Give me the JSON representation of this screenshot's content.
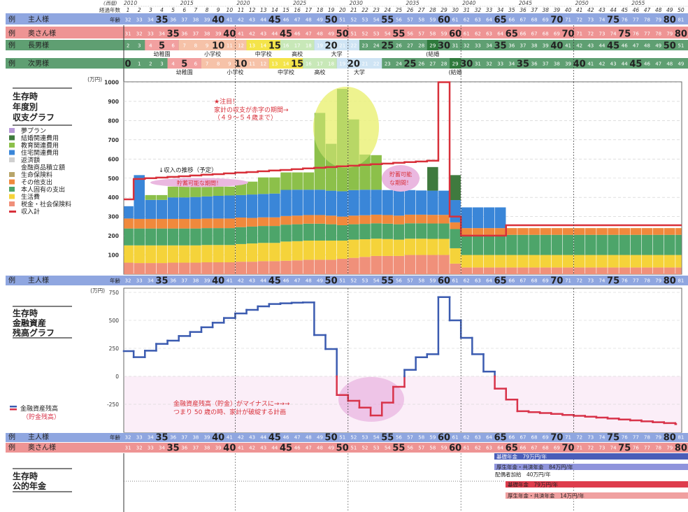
{
  "header": {
    "era_label": "(西暦)",
    "years": [
      "2010",
      "2015",
      "2020",
      "2025",
      "2030",
      "2035",
      "2040",
      "2045",
      "2050",
      "2055"
    ],
    "elapsed_label": "経過年数",
    "elapsed": [
      1,
      2,
      3,
      4,
      5,
      6,
      7,
      8,
      9,
      10,
      11,
      12,
      13,
      14,
      15,
      16,
      17,
      18,
      19,
      20,
      21,
      22,
      23,
      24,
      25,
      26,
      27,
      28,
      29,
      30,
      31,
      32,
      33,
      34,
      35,
      36,
      37,
      38,
      39,
      40,
      41,
      42,
      43,
      44,
      45,
      46,
      47,
      48,
      49,
      50
    ]
  },
  "rows": {
    "example": "例",
    "age_label": "年齢",
    "husband": {
      "name": "主人様",
      "start_age": 32,
      "color": "#8fa6e0"
    },
    "wife": {
      "name": "奥さん様",
      "start_age": 31,
      "color": "#ee9494"
    },
    "son1": {
      "name": "長男様",
      "start_age": 2,
      "color": "#5f9f72",
      "stages": [
        {
          "label": "幼稚園",
          "from": 4,
          "to": 6,
          "color": "#f2a0a0"
        },
        {
          "label": "小学校",
          "from": 7,
          "to": 12,
          "color": "#f6c2a8"
        },
        {
          "label": "中学校",
          "from": 13,
          "to": 15,
          "color": "#f4e44a"
        },
        {
          "label": "高校",
          "from": 16,
          "to": 18,
          "color": "#c8e8b8"
        },
        {
          "label": "大学",
          "from": 19,
          "to": 22,
          "color": "#cfe4f4"
        },
        {
          "label": "(結婚",
          "from": 29,
          "to": 29,
          "color": "#2f7a3c"
        }
      ]
    },
    "son2": {
      "name": "次男様",
      "start_age": 0,
      "color": "#5f9f72",
      "stages": [
        {
          "label": "幼稚園",
          "from": 4,
          "to": 6,
          "color": "#f2a0a0"
        },
        {
          "label": "小学校",
          "from": 7,
          "to": 12,
          "color": "#f6c2a8"
        },
        {
          "label": "中学校",
          "from": 13,
          "to": 15,
          "color": "#f4e44a"
        },
        {
          "label": "高校",
          "from": 16,
          "to": 18,
          "color": "#c8e8b8"
        },
        {
          "label": "大学",
          "from": 19,
          "to": 22,
          "color": "#cfe4f4"
        },
        {
          "label": "(結婚",
          "from": 29,
          "to": 29,
          "color": "#2f7a3c"
        }
      ]
    }
  },
  "chart_data": [
    {
      "type": "bar",
      "title": "生存時 年度別 収支グラフ",
      "ylabel": "(万円)",
      "ylim": [
        0,
        1000
      ],
      "yticks": [
        100,
        200,
        300,
        400,
        500,
        600,
        700,
        800,
        900,
        1000
      ],
      "grid": true,
      "x": "経過年数 1–50",
      "legend_items": [
        {
          "name": "夢プラン",
          "color": "#b79ad8"
        },
        {
          "name": "結婚関連費用",
          "color": "#3f7a3e"
        },
        {
          "name": "教育関連費用",
          "color": "#8cc04a"
        },
        {
          "name": "住宅関連費用",
          "color": "#3a86d8"
        },
        {
          "name": "返済額",
          "color": "#d0d0d0"
        },
        {
          "name": "金融商品積立額",
          "color": "#ffffff"
        },
        {
          "name": "生命保険料",
          "color": "#b8a56a"
        },
        {
          "name": "その他支出",
          "color": "#f0893c"
        },
        {
          "name": "本人固有の支出",
          "color": "#4da56a"
        },
        {
          "name": "生活費",
          "color": "#f5d33a"
        },
        {
          "name": "税金・社会保険料",
          "color": "#f0907a"
        },
        {
          "name": "収入計",
          "color": "#d8303a"
        }
      ],
      "series": [
        {
          "name": "税金・社会保険料",
          "color": "#f0907a",
          "values": [
            60,
            58,
            58,
            58,
            60,
            60,
            60,
            62,
            62,
            62,
            65,
            65,
            68,
            68,
            70,
            72,
            75,
            75,
            75,
            80,
            85,
            90,
            95,
            95,
            95,
            100,
            100,
            100,
            100,
            55,
            35,
            35,
            35,
            35,
            35,
            35,
            35,
            35,
            35,
            35,
            35,
            35,
            35,
            35,
            35,
            35,
            35,
            35,
            35,
            35
          ]
        },
        {
          "name": "生活費",
          "color": "#f5d33a",
          "values": [
            90,
            92,
            92,
            92,
            90,
            90,
            90,
            90,
            90,
            90,
            92,
            95,
            95,
            95,
            100,
            100,
            100,
            100,
            100,
            95,
            95,
            92,
            90,
            88,
            85,
            85,
            85,
            84,
            84,
            80,
            65,
            65,
            65,
            65,
            65,
            65,
            65,
            65,
            65,
            65,
            65,
            65,
            65,
            65,
            65,
            65,
            65,
            65,
            65,
            65
          ]
        },
        {
          "name": "本人固有の支出",
          "color": "#4da56a",
          "values": [
            88,
            88,
            88,
            88,
            88,
            88,
            88,
            88,
            88,
            88,
            88,
            88,
            88,
            88,
            88,
            88,
            88,
            88,
            85,
            80,
            80,
            80,
            80,
            80,
            80,
            80,
            80,
            80,
            80,
            100,
            105,
            105,
            105,
            105,
            105,
            105,
            105,
            105,
            105,
            105,
            105,
            105,
            105,
            105,
            105,
            105,
            105,
            105,
            105,
            105
          ]
        },
        {
          "name": "その他支出",
          "color": "#f0893c",
          "values": [
            52,
            50,
            50,
            50,
            50,
            50,
            50,
            50,
            50,
            50,
            50,
            45,
            45,
            45,
            45,
            45,
            45,
            45,
            45,
            45,
            45,
            45,
            45,
            45,
            45,
            45,
            45,
            45,
            45,
            35,
            35,
            35,
            35,
            35,
            35,
            35,
            35,
            35,
            35,
            35,
            35,
            35,
            35,
            35,
            35,
            35,
            35,
            35,
            35,
            35
          ]
        },
        {
          "name": "住宅関連費用",
          "color": "#3a86d8",
          "values": [
            64,
            228,
            99,
            99,
            112,
            112,
            114,
            115,
            118,
            120,
            117,
            122,
            122,
            124,
            136,
            135,
            132,
            132,
            130,
            132,
            133,
            133,
            130,
            130,
            135,
            128,
            126,
            126,
            126,
            116,
            108,
            108,
            108,
            108,
            0,
            0,
            0,
            0,
            0,
            0,
            0,
            0,
            0,
            0,
            0,
            0,
            0,
            0,
            0,
            0
          ]
        },
        {
          "name": "教育関連費用",
          "color": "#8cc04a",
          "values": [
            0,
            0,
            25,
            25,
            56,
            56,
            54,
            51,
            48,
            46,
            70,
            67,
            86,
            84,
            91,
            90,
            90,
            400,
            244,
            533,
            368,
            183,
            180,
            0,
            0,
            0,
            0,
            0,
            0,
            0,
            0,
            0,
            0,
            0,
            0,
            0,
            0,
            0,
            0,
            0,
            0,
            0,
            0,
            0,
            0,
            0,
            0,
            0,
            0,
            0
          ]
        },
        {
          "name": "結婚関連費用",
          "color": "#3f7a3e",
          "values": [
            0,
            0,
            0,
            0,
            0,
            0,
            0,
            0,
            0,
            0,
            0,
            0,
            0,
            0,
            0,
            0,
            0,
            0,
            0,
            0,
            0,
            0,
            0,
            0,
            0,
            0,
            0,
            123,
            0,
            130,
            0,
            0,
            0,
            0,
            0,
            0,
            0,
            0,
            0,
            0,
            0,
            0,
            0,
            0,
            0,
            0,
            0,
            0,
            0,
            0
          ]
        }
      ],
      "line": {
        "name": "収入計",
        "color": "#d8303a",
        "values": [
          390,
          496,
          500,
          503,
          507,
          510,
          514,
          518,
          521,
          525,
          529,
          532,
          536,
          540,
          543,
          547,
          551,
          554,
          558,
          562,
          565,
          569,
          573,
          576,
          580,
          584,
          587,
          591,
          1000,
          300,
          201,
          201,
          201,
          201,
          255,
          255,
          255,
          255,
          255,
          255,
          255,
          255,
          255,
          255,
          255,
          255,
          255,
          255,
          255,
          255
        ]
      },
      "annotations": {
        "star": "★注目！",
        "deficit": "家計の収支が赤字の期間→",
        "deficit_range": "（４９～５４歳まで）",
        "income_trend": "↓収入の推移（予定）",
        "saving1": "貯蓄可能な期間！",
        "saving2_a": "貯蓄可能",
        "saving2_b": "な期間！"
      }
    },
    {
      "type": "line",
      "title": "生存時 金融資産残高グラフ",
      "ylabel": "(万円)",
      "ylim": [
        -500,
        750
      ],
      "yticks": [
        750,
        500,
        250,
        0,
        -250
      ],
      "grid": true,
      "legend_items": [
        {
          "name": "金融資産残高",
          "sub": "（貯金残高）",
          "colors": [
            "#3b5bb0",
            "#d8334a"
          ]
        }
      ],
      "series": [
        {
          "name": "金融資産残高",
          "values": [
            225,
            171,
            229,
            290,
            319,
            360,
            396,
            438,
            479,
            521,
            562,
            594,
            625,
            646,
            652,
            658,
            660,
            369,
            244,
            -167,
            -219,
            -280,
            -350,
            -235,
            -94,
            58,
            170,
            198,
            708,
            500,
            344,
            198,
            42,
            -110,
            -208,
            -312,
            -320,
            -328,
            -336,
            -345,
            -353,
            -361,
            -369,
            -377,
            -386,
            -394,
            -402,
            -410,
            -418,
            -427
          ]
        }
      ],
      "annotations": {
        "line1": "金融資産残高（貯金）がマイナスに→→→",
        "line2": "つまり 50 歳の時、家計が破綻する計画"
      }
    }
  ],
  "pension": {
    "title_a": "生存時",
    "title_b": "公的年金",
    "items": [
      {
        "label": "基礎年金　79万円/年",
        "color": "#4a5db8",
        "from_age": 65,
        "owner": "主人様"
      },
      {
        "label": "厚生年金・共済年金　84万円/年",
        "color": "#8f94dc",
        "from_age": 65,
        "owner": "主人様"
      },
      {
        "label": "配偶者加給　40万円/年",
        "owner": "主人様"
      },
      {
        "label": "基礎年金　79万円/年",
        "color": "#de3c4c",
        "from_age": 65,
        "owner": "奥さん様"
      },
      {
        "label": "厚生年金・共済年金　14万円/年",
        "color": "#f0a0a0",
        "from_age": 65,
        "owner": "奥さん様"
      }
    ]
  },
  "titles": {
    "c1": [
      "生存時",
      "年度別",
      "収支グラフ"
    ],
    "c2": [
      "生存時",
      "金融資産",
      "残高グラフ"
    ],
    "unit": "(万円)"
  }
}
